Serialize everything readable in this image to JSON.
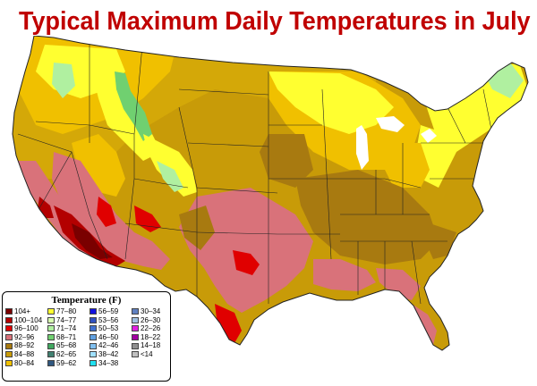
{
  "title": "Typical Maximum Daily Temperatures in July",
  "legend": {
    "title": "Temperature (F)",
    "columns": [
      [
        {
          "label": "104+",
          "color": "#7a0000"
        },
        {
          "label": "100–104",
          "color": "#b30000"
        },
        {
          "label": "96–100",
          "color": "#e00000"
        },
        {
          "label": "92–96",
          "color": "#d9727a"
        },
        {
          "label": "88–92",
          "color": "#a87a10"
        },
        {
          "label": "84–88",
          "color": "#c89b08"
        },
        {
          "label": "80–84",
          "color": "#f0c000"
        }
      ],
      [
        {
          "label": "77–80",
          "color": "#ffff30"
        },
        {
          "label": "74–77",
          "color": "#d8ffb0"
        },
        {
          "label": "71–74",
          "color": "#b0f0a0"
        },
        {
          "label": "68–71",
          "color": "#70d070"
        },
        {
          "label": "65–68",
          "color": "#40a860"
        },
        {
          "label": "62–65",
          "color": "#408070"
        },
        {
          "label": "59–62",
          "color": "#305880"
        }
      ],
      [
        {
          "label": "56–59",
          "color": "#1010e0"
        },
        {
          "label": "53–56",
          "color": "#3050c0"
        },
        {
          "label": "50–53",
          "color": "#4070d0"
        },
        {
          "label": "46–50",
          "color": "#60a0e0"
        },
        {
          "label": "42–46",
          "color": "#80c0f0"
        },
        {
          "label": "38–42",
          "color": "#a0e0ff"
        },
        {
          "label": "34–38",
          "color": "#20e0f0"
        }
      ],
      [
        {
          "label": "30–34",
          "color": "#6080c0"
        },
        {
          "label": "26–30",
          "color": "#a0c0e0"
        },
        {
          "label": "22–26",
          "color": "#e020e0"
        },
        {
          "label": "18–22",
          "color": "#a000a0"
        },
        {
          "label": "14–18",
          "color": "#909090"
        },
        {
          "label": "<14",
          "color": "#c0c0c0"
        }
      ]
    ]
  },
  "colors": {
    "title": "#c00000",
    "state_border": "#222222",
    "water": "#ffffff"
  }
}
